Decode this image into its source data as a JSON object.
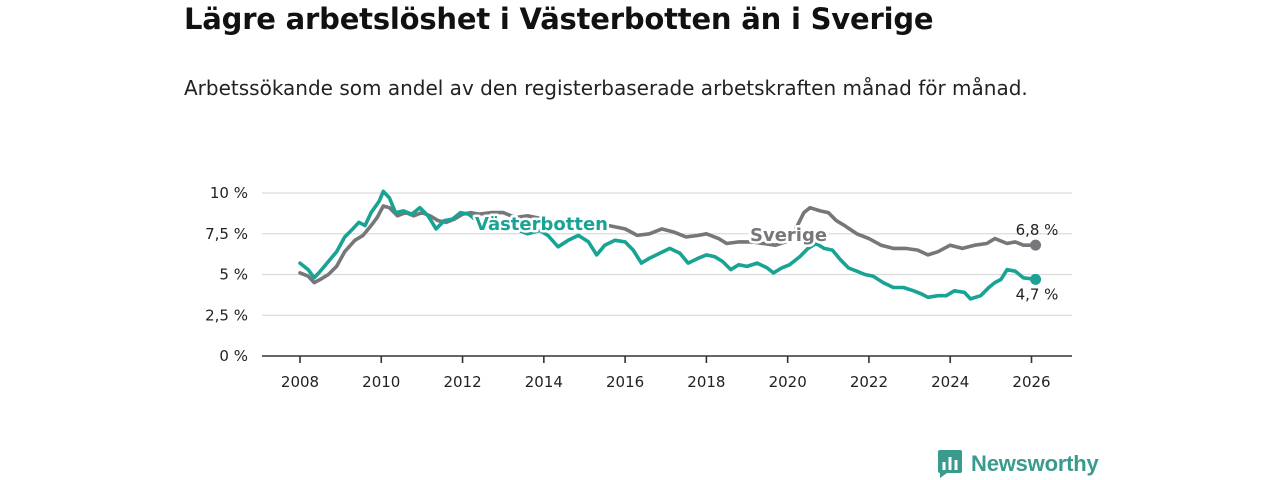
{
  "header": {
    "title": "Lägre arbetslöshet i Västerbotten än i Sverige",
    "subtitle": "Arbetssökande som andel av den registerbaserade arbetskraften månad för månad."
  },
  "brand": {
    "name": "Newsworthy",
    "icon": "newsworthy-logo-icon"
  },
  "colors": {
    "vasterbotten": "#18a394",
    "sverige": "#77767a",
    "grid": "#dcdcdc",
    "axis": "#333333"
  },
  "chart_data": {
    "type": "line",
    "title": "Lägre arbetslöshet i Västerbotten än i Sverige",
    "xlabel": "",
    "ylabel": "",
    "xlim": [
      2008,
      2026.1
    ],
    "ylim": [
      0,
      10
    ],
    "y_ticks": [
      0,
      2.5,
      5,
      7.5,
      10
    ],
    "y_tick_labels": [
      "0 %",
      "2,5 %",
      "5 %",
      "7,5 %",
      "10 %"
    ],
    "x_ticks": [
      2008,
      2010,
      2012,
      2014,
      2016,
      2018,
      2020,
      2022,
      2024,
      2026
    ],
    "x_tick_labels": [
      "2008",
      "2010",
      "2012",
      "2014",
      "2016",
      "2018",
      "2020",
      "2022",
      "2024",
      "2026"
    ],
    "grid": true,
    "series": [
      {
        "name": "Sverige",
        "color": "#77767a",
        "end_label": "6,8 %",
        "points": [
          [
            2008.0,
            5.1
          ],
          [
            2008.2,
            4.9
          ],
          [
            2008.35,
            4.5
          ],
          [
            2008.5,
            4.7
          ],
          [
            2008.7,
            5.0
          ],
          [
            2008.9,
            5.5
          ],
          [
            2009.1,
            6.4
          ],
          [
            2009.35,
            7.1
          ],
          [
            2009.55,
            7.4
          ],
          [
            2009.75,
            8.0
          ],
          [
            2009.9,
            8.5
          ],
          [
            2010.05,
            9.2
          ],
          [
            2010.2,
            9.1
          ],
          [
            2010.4,
            8.6
          ],
          [
            2010.6,
            8.8
          ],
          [
            2010.8,
            8.6
          ],
          [
            2011.0,
            8.8
          ],
          [
            2011.2,
            8.6
          ],
          [
            2011.4,
            8.3
          ],
          [
            2011.6,
            8.2
          ],
          [
            2011.8,
            8.4
          ],
          [
            2012.0,
            8.7
          ],
          [
            2012.2,
            8.8
          ],
          [
            2012.4,
            8.7
          ],
          [
            2012.7,
            8.8
          ],
          [
            2013.0,
            8.8
          ],
          [
            2013.3,
            8.5
          ],
          [
            2013.6,
            8.6
          ],
          [
            2014.0,
            8.4
          ],
          [
            2014.3,
            8.2
          ],
          [
            2014.6,
            8.0
          ],
          [
            2015.0,
            8.1
          ],
          [
            2015.3,
            7.8
          ],
          [
            2015.6,
            8.0
          ],
          [
            2016.0,
            7.8
          ],
          [
            2016.3,
            7.4
          ],
          [
            2016.6,
            7.5
          ],
          [
            2016.9,
            7.8
          ],
          [
            2017.2,
            7.6
          ],
          [
            2017.5,
            7.3
          ],
          [
            2017.8,
            7.4
          ],
          [
            2018.0,
            7.5
          ],
          [
            2018.3,
            7.2
          ],
          [
            2018.5,
            6.9
          ],
          [
            2018.8,
            7.0
          ],
          [
            2019.1,
            7.0
          ],
          [
            2019.4,
            6.9
          ],
          [
            2019.7,
            6.8
          ],
          [
            2019.95,
            7.0
          ],
          [
            2020.2,
            7.8
          ],
          [
            2020.4,
            8.8
          ],
          [
            2020.55,
            9.1
          ],
          [
            2020.8,
            8.9
          ],
          [
            2021.0,
            8.8
          ],
          [
            2021.2,
            8.3
          ],
          [
            2021.4,
            8.0
          ],
          [
            2021.7,
            7.5
          ],
          [
            2022.0,
            7.2
          ],
          [
            2022.3,
            6.8
          ],
          [
            2022.6,
            6.6
          ],
          [
            2022.9,
            6.6
          ],
          [
            2023.2,
            6.5
          ],
          [
            2023.45,
            6.2
          ],
          [
            2023.7,
            6.4
          ],
          [
            2024.0,
            6.8
          ],
          [
            2024.3,
            6.6
          ],
          [
            2024.6,
            6.8
          ],
          [
            2024.9,
            6.9
          ],
          [
            2025.1,
            7.2
          ],
          [
            2025.4,
            6.9
          ],
          [
            2025.6,
            7.0
          ],
          [
            2025.8,
            6.8
          ],
          [
            2026.1,
            6.8
          ]
        ]
      },
      {
        "name": "Västerbotten",
        "color": "#18a394",
        "end_label": "4,7 %",
        "points": [
          [
            2008.0,
            5.7
          ],
          [
            2008.2,
            5.3
          ],
          [
            2008.35,
            4.8
          ],
          [
            2008.5,
            5.2
          ],
          [
            2008.7,
            5.8
          ],
          [
            2008.9,
            6.4
          ],
          [
            2009.1,
            7.3
          ],
          [
            2009.3,
            7.8
          ],
          [
            2009.45,
            8.2
          ],
          [
            2009.6,
            8.0
          ],
          [
            2009.75,
            8.8
          ],
          [
            2009.95,
            9.5
          ],
          [
            2010.05,
            10.1
          ],
          [
            2010.2,
            9.7
          ],
          [
            2010.35,
            8.8
          ],
          [
            2010.55,
            8.9
          ],
          [
            2010.75,
            8.7
          ],
          [
            2010.95,
            9.1
          ],
          [
            2011.15,
            8.6
          ],
          [
            2011.35,
            7.8
          ],
          [
            2011.55,
            8.3
          ],
          [
            2011.75,
            8.4
          ],
          [
            2011.95,
            8.8
          ],
          [
            2012.15,
            8.7
          ],
          [
            2012.4,
            8.2
          ],
          [
            2012.7,
            8.3
          ],
          [
            2013.0,
            8.0
          ],
          [
            2013.3,
            7.8
          ],
          [
            2013.6,
            7.5
          ],
          [
            2013.9,
            7.7
          ],
          [
            2014.1,
            7.4
          ],
          [
            2014.35,
            6.7
          ],
          [
            2014.6,
            7.1
          ],
          [
            2014.85,
            7.4
          ],
          [
            2015.1,
            7.0
          ],
          [
            2015.3,
            6.2
          ],
          [
            2015.5,
            6.8
          ],
          [
            2015.75,
            7.1
          ],
          [
            2016.0,
            7.0
          ],
          [
            2016.2,
            6.5
          ],
          [
            2016.4,
            5.7
          ],
          [
            2016.6,
            6.0
          ],
          [
            2016.85,
            6.3
          ],
          [
            2017.1,
            6.6
          ],
          [
            2017.35,
            6.3
          ],
          [
            2017.55,
            5.7
          ],
          [
            2017.8,
            6.0
          ],
          [
            2018.0,
            6.2
          ],
          [
            2018.2,
            6.1
          ],
          [
            2018.4,
            5.8
          ],
          [
            2018.6,
            5.3
          ],
          [
            2018.8,
            5.6
          ],
          [
            2019.0,
            5.5
          ],
          [
            2019.25,
            5.7
          ],
          [
            2019.5,
            5.4
          ],
          [
            2019.65,
            5.1
          ],
          [
            2019.85,
            5.4
          ],
          [
            2020.05,
            5.6
          ],
          [
            2020.3,
            6.1
          ],
          [
            2020.5,
            6.6
          ],
          [
            2020.7,
            6.9
          ],
          [
            2020.9,
            6.6
          ],
          [
            2021.1,
            6.5
          ],
          [
            2021.3,
            5.9
          ],
          [
            2021.5,
            5.4
          ],
          [
            2021.7,
            5.2
          ],
          [
            2021.9,
            5.0
          ],
          [
            2022.1,
            4.9
          ],
          [
            2022.35,
            4.5
          ],
          [
            2022.6,
            4.2
          ],
          [
            2022.85,
            4.2
          ],
          [
            2023.1,
            4.0
          ],
          [
            2023.3,
            3.8
          ],
          [
            2023.45,
            3.6
          ],
          [
            2023.7,
            3.7
          ],
          [
            2023.9,
            3.7
          ],
          [
            2024.1,
            4.0
          ],
          [
            2024.35,
            3.9
          ],
          [
            2024.5,
            3.5
          ],
          [
            2024.75,
            3.7
          ],
          [
            2024.95,
            4.2
          ],
          [
            2025.1,
            4.5
          ],
          [
            2025.25,
            4.7
          ],
          [
            2025.4,
            5.3
          ],
          [
            2025.6,
            5.2
          ],
          [
            2025.8,
            4.8
          ],
          [
            2026.1,
            4.7
          ]
        ]
      }
    ]
  }
}
